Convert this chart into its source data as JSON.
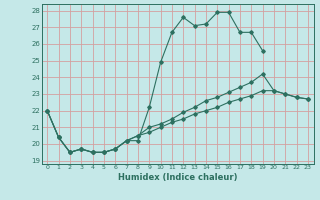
{
  "xlabel": "Humidex (Indice chaleur)",
  "bg_color": "#c5e8e8",
  "line_color": "#2d7060",
  "grid_color": "#d4a0a0",
  "xlim": [
    -0.5,
    23.5
  ],
  "ylim": [
    18.8,
    28.4
  ],
  "yticks": [
    19,
    20,
    21,
    22,
    23,
    24,
    25,
    26,
    27,
    28
  ],
  "xticks": [
    0,
    1,
    2,
    3,
    4,
    5,
    6,
    7,
    8,
    9,
    10,
    11,
    12,
    13,
    14,
    15,
    16,
    17,
    18,
    19,
    20,
    21,
    22,
    23
  ],
  "line1_y": [
    22.0,
    20.4,
    19.5,
    19.7,
    19.5,
    19.5,
    19.7,
    20.2,
    20.2,
    22.2,
    24.9,
    26.7,
    27.6,
    27.1,
    27.2,
    27.9,
    27.9,
    26.7,
    26.7,
    25.6,
    null,
    null,
    null,
    null
  ],
  "line2_y": [
    22.0,
    20.4,
    19.5,
    19.7,
    19.5,
    19.5,
    19.7,
    20.2,
    20.5,
    21.0,
    21.2,
    21.5,
    21.9,
    22.2,
    22.6,
    22.8,
    23.1,
    23.4,
    23.7,
    24.2,
    23.2,
    23.0,
    22.8,
    22.7
  ],
  "line3_y": [
    22.0,
    20.4,
    19.5,
    19.7,
    19.5,
    19.5,
    19.7,
    20.2,
    20.5,
    20.7,
    21.0,
    21.3,
    21.5,
    21.8,
    22.0,
    22.2,
    22.5,
    22.7,
    22.9,
    23.2,
    23.2,
    23.0,
    22.8,
    22.7
  ]
}
